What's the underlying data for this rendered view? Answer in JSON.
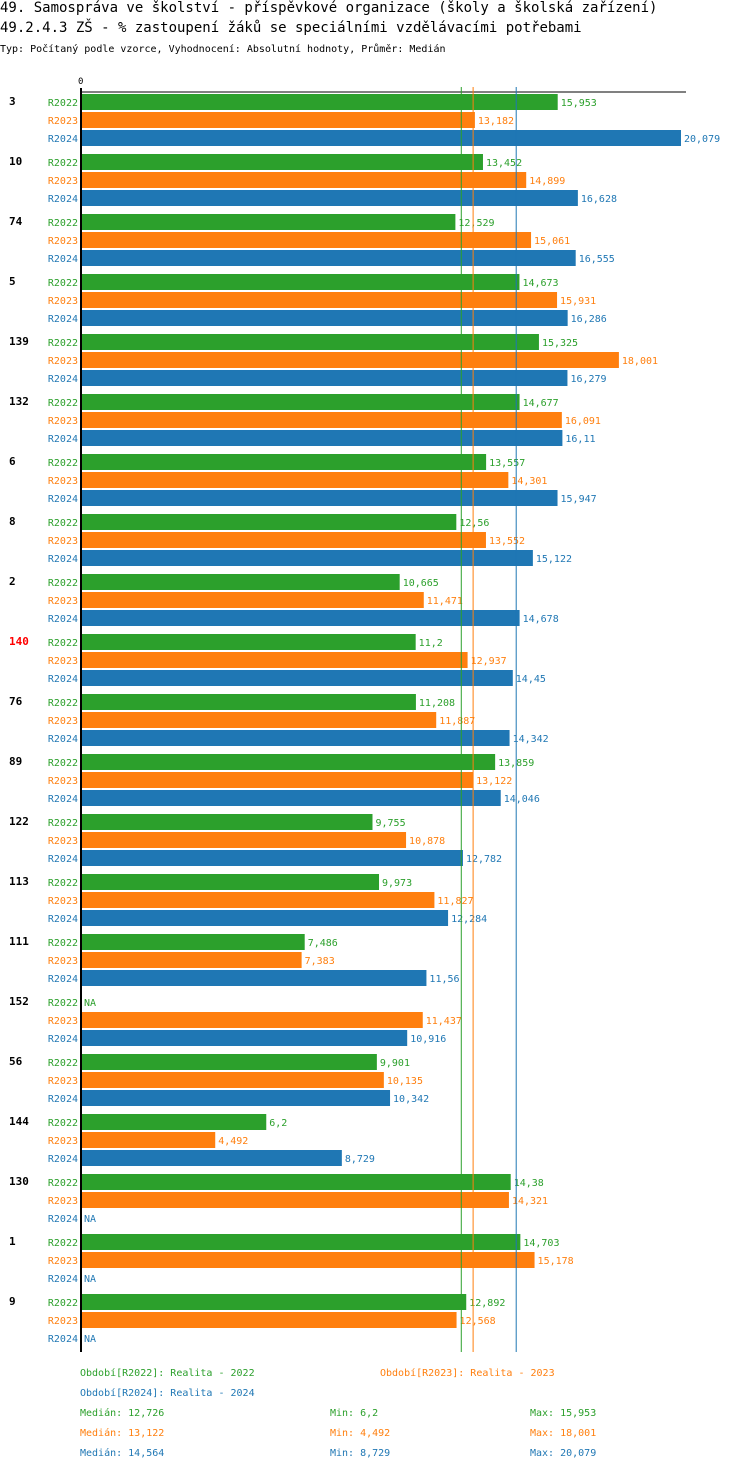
{
  "chart_data": {
    "type": "bar",
    "title": "49. Samospráva ve školství - příspěvkové organizace (školy a školská zařízení)",
    "subtitle": "49.2.4.3 ZŠ - % zastoupení žáků se speciálními vzdělávacími potřebami",
    "info": "Typ: Počítaný podle vzorce, Vyhodnocení: Absolutní hodnoty, Průměr: Medián",
    "axis_zero_label": "0",
    "xlim": [
      0,
      20.079
    ],
    "highlight_category": "140",
    "highlight_color": "#ff0000",
    "series": [
      {
        "name": "R2022",
        "color": "#2ca02c",
        "median": 12.726
      },
      {
        "name": "R2023",
        "color": "#ff7f0e",
        "median": 13.122
      },
      {
        "name": "R2024",
        "color": "#1f77b4",
        "median": 14.564
      }
    ],
    "categories": [
      "3",
      "10",
      "74",
      "5",
      "139",
      "132",
      "6",
      "8",
      "2",
      "140",
      "76",
      "89",
      "122",
      "113",
      "111",
      "152",
      "56",
      "144",
      "130",
      "1",
      "9"
    ],
    "values": [
      [
        15.953,
        13.182,
        20.079
      ],
      [
        13.452,
        14.899,
        16.628
      ],
      [
        12.529,
        15.061,
        16.555
      ],
      [
        14.673,
        15.931,
        16.286
      ],
      [
        15.325,
        18.001,
        16.279
      ],
      [
        14.677,
        16.091,
        16.11
      ],
      [
        13.557,
        14.301,
        15.947
      ],
      [
        12.56,
        13.552,
        15.122
      ],
      [
        10.665,
        11.471,
        14.678
      ],
      [
        11.2,
        12.937,
        14.45
      ],
      [
        11.208,
        11.887,
        14.342
      ],
      [
        13.859,
        13.122,
        14.046
      ],
      [
        9.755,
        10.878,
        12.782
      ],
      [
        9.973,
        11.827,
        12.284
      ],
      [
        7.486,
        7.383,
        11.56
      ],
      [
        null,
        11.437,
        10.916
      ],
      [
        9.901,
        10.135,
        10.342
      ],
      [
        6.2,
        4.492,
        8.729
      ],
      [
        14.38,
        14.321,
        null
      ],
      [
        14.703,
        15.178,
        null
      ],
      [
        12.892,
        12.568,
        null
      ]
    ],
    "labels": [
      [
        "15,953",
        "13,182",
        "20,079"
      ],
      [
        "13,452",
        "14,899",
        "16,628"
      ],
      [
        "12,529",
        "15,061",
        "16,555"
      ],
      [
        "14,673",
        "15,931",
        "16,286"
      ],
      [
        "15,325",
        "18,001",
        "16,279"
      ],
      [
        "14,677",
        "16,091",
        "16,11"
      ],
      [
        "13,557",
        "14,301",
        "15,947"
      ],
      [
        "12,56",
        "13,552",
        "15,122"
      ],
      [
        "10,665",
        "11,471",
        "14,678"
      ],
      [
        "11,2",
        "12,937",
        "14,45"
      ],
      [
        "11,208",
        "11,887",
        "14,342"
      ],
      [
        "13,859",
        "13,122",
        "14,046"
      ],
      [
        "9,755",
        "10,878",
        "12,782"
      ],
      [
        "9,973",
        "11,827",
        "12,284"
      ],
      [
        "7,486",
        "7,383",
        "11,56"
      ],
      [
        "NA",
        "11,437",
        "10,916"
      ],
      [
        "9,901",
        "10,135",
        "10,342"
      ],
      [
        "6,2",
        "4,492",
        "8,729"
      ],
      [
        "14,38",
        "14,321",
        "NA"
      ],
      [
        "14,703",
        "15,178",
        "NA"
      ],
      [
        "12,892",
        "12,568",
        "NA"
      ]
    ],
    "legend": {
      "periods": [
        "Období[R2022]: Realita - 2022",
        "Období[R2023]: Realita - 2023",
        "Období[R2024]: Realita - 2024"
      ],
      "stats": [
        [
          "Medián: 12,726",
          "Min: 6,2",
          "Max: 15,953"
        ],
        [
          "Medián: 13,122",
          "Min: 4,492",
          "Max: 18,001"
        ],
        [
          "Medián: 14,564",
          "Min: 8,729",
          "Max: 20,079"
        ]
      ]
    }
  }
}
